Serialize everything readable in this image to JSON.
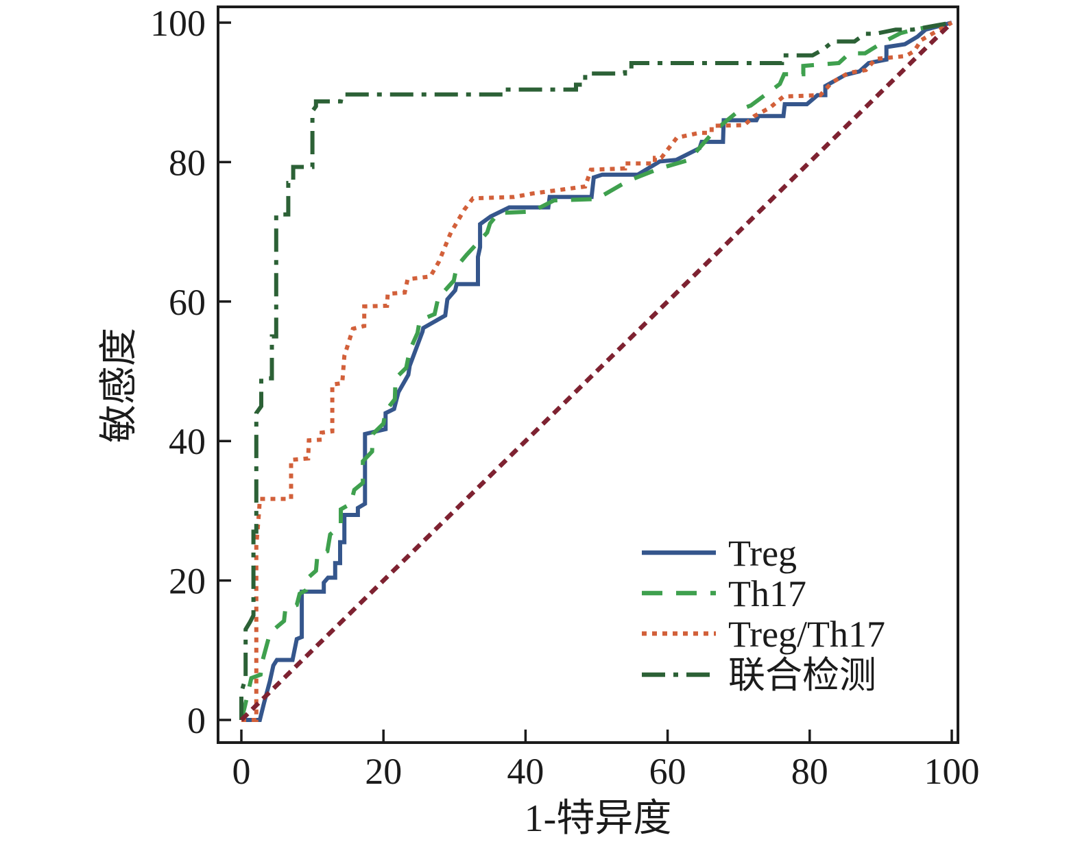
{
  "chart_data": {
    "type": "line",
    "subtype": "roc-step-curves",
    "title": "",
    "xlabel": "1-特异度",
    "ylabel": "敏感度",
    "xlim": [
      -3.3,
      100.9
    ],
    "ylim": [
      -3.2,
      102.3
    ],
    "x_ticks": [
      0,
      20,
      40,
      60,
      80,
      100
    ],
    "y_ticks": [
      0,
      20,
      40,
      60,
      80,
      100
    ],
    "grid": false,
    "legend_position": "lower-right",
    "colors": {
      "treg": "#35568C",
      "th17": "#3FA04E",
      "treg_th17": "#D2603A",
      "combined": "#2C6136",
      "reference": "#7E2231",
      "axis": "#1b1b1b"
    },
    "series": [
      {
        "name": "Treg",
        "color": "#35568C",
        "style": "solid",
        "legend": true,
        "points": [
          [
            0,
            0
          ],
          [
            2.6,
            0
          ],
          [
            3.2,
            2.5
          ],
          [
            4,
            5.5
          ],
          [
            4.5,
            7.8
          ],
          [
            5,
            8.6
          ],
          [
            7.2,
            8.6
          ],
          [
            7.8,
            11.6
          ],
          [
            8.5,
            11.9
          ],
          [
            8.5,
            18.4
          ],
          [
            11.6,
            18.4
          ],
          [
            11.6,
            19.7
          ],
          [
            12.2,
            20.4
          ],
          [
            13.2,
            20.4
          ],
          [
            13.2,
            22.5
          ],
          [
            13.9,
            22.5
          ],
          [
            13.9,
            25.5
          ],
          [
            14.5,
            25.5
          ],
          [
            14.5,
            29.4
          ],
          [
            16.4,
            29.4
          ],
          [
            16.4,
            30.4
          ],
          [
            17.4,
            31
          ],
          [
            17.4,
            41
          ],
          [
            20.3,
            41.7
          ],
          [
            20.3,
            44
          ],
          [
            21.5,
            44.6
          ],
          [
            22.1,
            47
          ],
          [
            23.5,
            49.5
          ],
          [
            23.7,
            50.8
          ],
          [
            25.5,
            55.7
          ],
          [
            25.6,
            56.2
          ],
          [
            28.7,
            58
          ],
          [
            29,
            60.3
          ],
          [
            30.1,
            61.6
          ],
          [
            30.3,
            62.5
          ],
          [
            33.3,
            62.5
          ],
          [
            33.3,
            66.4
          ],
          [
            33.6,
            67.8
          ],
          [
            33.6,
            71.1
          ],
          [
            35.1,
            72.2
          ],
          [
            37.7,
            73.5
          ],
          [
            43.2,
            73.5
          ],
          [
            43.4,
            75
          ],
          [
            49.3,
            75
          ],
          [
            49.6,
            77.8
          ],
          [
            50.8,
            78.2
          ],
          [
            55.8,
            78.2
          ],
          [
            58.9,
            80.1
          ],
          [
            61.2,
            80.3
          ],
          [
            64.5,
            82
          ],
          [
            64.8,
            82.9
          ],
          [
            67.8,
            82.9
          ],
          [
            67.9,
            86
          ],
          [
            72.5,
            86
          ],
          [
            72.8,
            86.6
          ],
          [
            76.3,
            86.6
          ],
          [
            76.5,
            88.3
          ],
          [
            79.6,
            88.3
          ],
          [
            81.1,
            89.6
          ],
          [
            82.2,
            89.6
          ],
          [
            82.2,
            90.9
          ],
          [
            85,
            92.5
          ],
          [
            87,
            93
          ],
          [
            88.3,
            94.2
          ],
          [
            90.8,
            94.7
          ],
          [
            90.8,
            96.5
          ],
          [
            93.4,
            96.9
          ],
          [
            95.2,
            98
          ],
          [
            96.3,
            99
          ],
          [
            100,
            100
          ]
        ]
      },
      {
        "name": "Th17",
        "color": "#3FA04E",
        "style": "dashed",
        "legend": true,
        "points": [
          [
            0,
            0
          ],
          [
            0.5,
            2
          ],
          [
            1.4,
            6
          ],
          [
            2.7,
            6.5
          ],
          [
            3,
            8.6
          ],
          [
            3.8,
            11.6
          ],
          [
            4.6,
            13
          ],
          [
            6,
            14.2
          ],
          [
            6.2,
            16
          ],
          [
            7.8,
            16.5
          ],
          [
            8.2,
            18.1
          ],
          [
            9.1,
            18.6
          ],
          [
            9.4,
            20.4
          ],
          [
            10.5,
            21.4
          ],
          [
            10.7,
            23.7
          ],
          [
            12.1,
            24.2
          ],
          [
            12.5,
            26.6
          ],
          [
            14,
            27.9
          ],
          [
            14,
            30.2
          ],
          [
            15.4,
            31
          ],
          [
            15.9,
            33
          ],
          [
            17.1,
            34
          ],
          [
            17.1,
            37.1
          ],
          [
            18.4,
            38.5
          ],
          [
            18.5,
            41
          ],
          [
            20,
            42.5
          ],
          [
            20.3,
            44.3
          ],
          [
            21.6,
            46
          ],
          [
            21.7,
            49
          ],
          [
            23.2,
            50.5
          ],
          [
            23.7,
            53
          ],
          [
            24.8,
            55.5
          ],
          [
            25.1,
            57.3
          ],
          [
            27.2,
            58.2
          ],
          [
            27.7,
            60.5
          ],
          [
            29.9,
            63
          ],
          [
            30.3,
            65
          ],
          [
            31.7,
            66.7
          ],
          [
            34.6,
            69.9
          ],
          [
            35,
            71.2
          ],
          [
            36.2,
            72.7
          ],
          [
            40.9,
            72.9
          ],
          [
            44,
            74.5
          ],
          [
            50,
            74.7
          ],
          [
            54.4,
            77.3
          ],
          [
            58.9,
            79.1
          ],
          [
            63,
            80.3
          ],
          [
            66.6,
            84.5
          ],
          [
            70.3,
            87.6
          ],
          [
            71.7,
            88.1
          ],
          [
            75.8,
            91.2
          ],
          [
            76.4,
            92.6
          ],
          [
            79.1,
            92.6
          ],
          [
            79.1,
            93.8
          ],
          [
            84.1,
            94.2
          ],
          [
            85.6,
            95.6
          ],
          [
            87.8,
            95.6
          ],
          [
            90.5,
            97.3
          ],
          [
            92.8,
            98.5
          ],
          [
            94.7,
            99
          ],
          [
            100,
            100
          ]
        ]
      },
      {
        "name": "Treg/Th17",
        "color": "#D2603A",
        "style": "dotted",
        "legend": true,
        "points": [
          [
            0,
            0
          ],
          [
            2.1,
            0
          ],
          [
            2.1,
            25
          ],
          [
            2.5,
            30
          ],
          [
            2.6,
            31.7
          ],
          [
            7,
            31.7
          ],
          [
            7,
            37.3
          ],
          [
            9.4,
            37.5
          ],
          [
            9.5,
            40.1
          ],
          [
            11.3,
            40.2
          ],
          [
            11.3,
            41.2
          ],
          [
            12.8,
            41.4
          ],
          [
            12.8,
            48.1
          ],
          [
            14.2,
            48.3
          ],
          [
            14.5,
            52.2
          ],
          [
            15.7,
            56.1
          ],
          [
            17.3,
            56.5
          ],
          [
            17.3,
            59.3
          ],
          [
            20.5,
            59.4
          ],
          [
            20.6,
            61.1
          ],
          [
            23,
            61.3
          ],
          [
            23.4,
            63.2
          ],
          [
            26.6,
            63.6
          ],
          [
            27.8,
            65.7
          ],
          [
            29.2,
            69.2
          ],
          [
            29.5,
            69.9
          ],
          [
            31.4,
            73.2
          ],
          [
            32.6,
            74.8
          ],
          [
            38.4,
            75
          ],
          [
            41,
            75.5
          ],
          [
            48.4,
            76.5
          ],
          [
            49.2,
            78.9
          ],
          [
            54,
            79.1
          ],
          [
            54,
            79.8
          ],
          [
            58.2,
            79.8
          ],
          [
            58.2,
            80.6
          ],
          [
            59.1,
            80.6
          ],
          [
            61.3,
            83.5
          ],
          [
            64.5,
            84.2
          ],
          [
            66.2,
            84.2
          ],
          [
            66.2,
            85.2
          ],
          [
            70.8,
            85.3
          ],
          [
            72.2,
            86.6
          ],
          [
            74.4,
            87.8
          ],
          [
            76.3,
            89.4
          ],
          [
            81.5,
            89.6
          ],
          [
            83.1,
            91.4
          ],
          [
            85.5,
            92.8
          ],
          [
            87.9,
            93.2
          ],
          [
            89.3,
            94.8
          ],
          [
            93.5,
            95.2
          ],
          [
            94.7,
            95.9
          ],
          [
            95.7,
            97.5
          ],
          [
            100,
            100
          ]
        ]
      },
      {
        "name": "联合检测",
        "color": "#2C6136",
        "style": "dashdot",
        "legend": true,
        "points": [
          [
            0,
            0
          ],
          [
            0,
            4
          ],
          [
            0.6,
            6
          ],
          [
            0.6,
            13
          ],
          [
            1.2,
            14
          ],
          [
            1.7,
            15
          ],
          [
            1.7,
            27
          ],
          [
            2.1,
            27
          ],
          [
            2.1,
            44
          ],
          [
            2.8,
            45
          ],
          [
            2.8,
            49
          ],
          [
            4.3,
            49
          ],
          [
            4.3,
            55
          ],
          [
            4.9,
            55
          ],
          [
            4.9,
            72.5
          ],
          [
            6.6,
            72.5
          ],
          [
            6.6,
            77
          ],
          [
            7.3,
            77
          ],
          [
            7.3,
            79.3
          ],
          [
            10,
            79.3
          ],
          [
            10,
            87.3
          ],
          [
            10.5,
            88
          ],
          [
            10.5,
            88.7
          ],
          [
            14,
            88.7
          ],
          [
            14.2,
            89.7
          ],
          [
            37,
            89.7
          ],
          [
            37,
            90.4
          ],
          [
            47.1,
            90.4
          ],
          [
            47.1,
            91.1
          ],
          [
            48.4,
            91.1
          ],
          [
            48.4,
            92.7
          ],
          [
            54,
            92.7
          ],
          [
            54,
            93.4
          ],
          [
            54.9,
            93.4
          ],
          [
            54.9,
            94.2
          ],
          [
            76.1,
            94.2
          ],
          [
            76.1,
            95.3
          ],
          [
            80.4,
            95.3
          ],
          [
            81.8,
            96.1
          ],
          [
            83.3,
            97.3
          ],
          [
            86.3,
            97.3
          ],
          [
            87.8,
            98.4
          ],
          [
            89.2,
            98.4
          ],
          [
            92.1,
            99
          ],
          [
            94.5,
            99
          ],
          [
            100,
            100
          ]
        ]
      },
      {
        "name": "reference-diagonal",
        "color": "#7E2231",
        "style": "refdash",
        "legend": false,
        "points": [
          [
            0,
            0
          ],
          [
            100,
            100
          ]
        ]
      }
    ]
  },
  "legend": {
    "entries": [
      {
        "label": "Treg"
      },
      {
        "label": "Th17"
      },
      {
        "label": "Treg/Th17"
      },
      {
        "label": "联合检测"
      }
    ]
  }
}
